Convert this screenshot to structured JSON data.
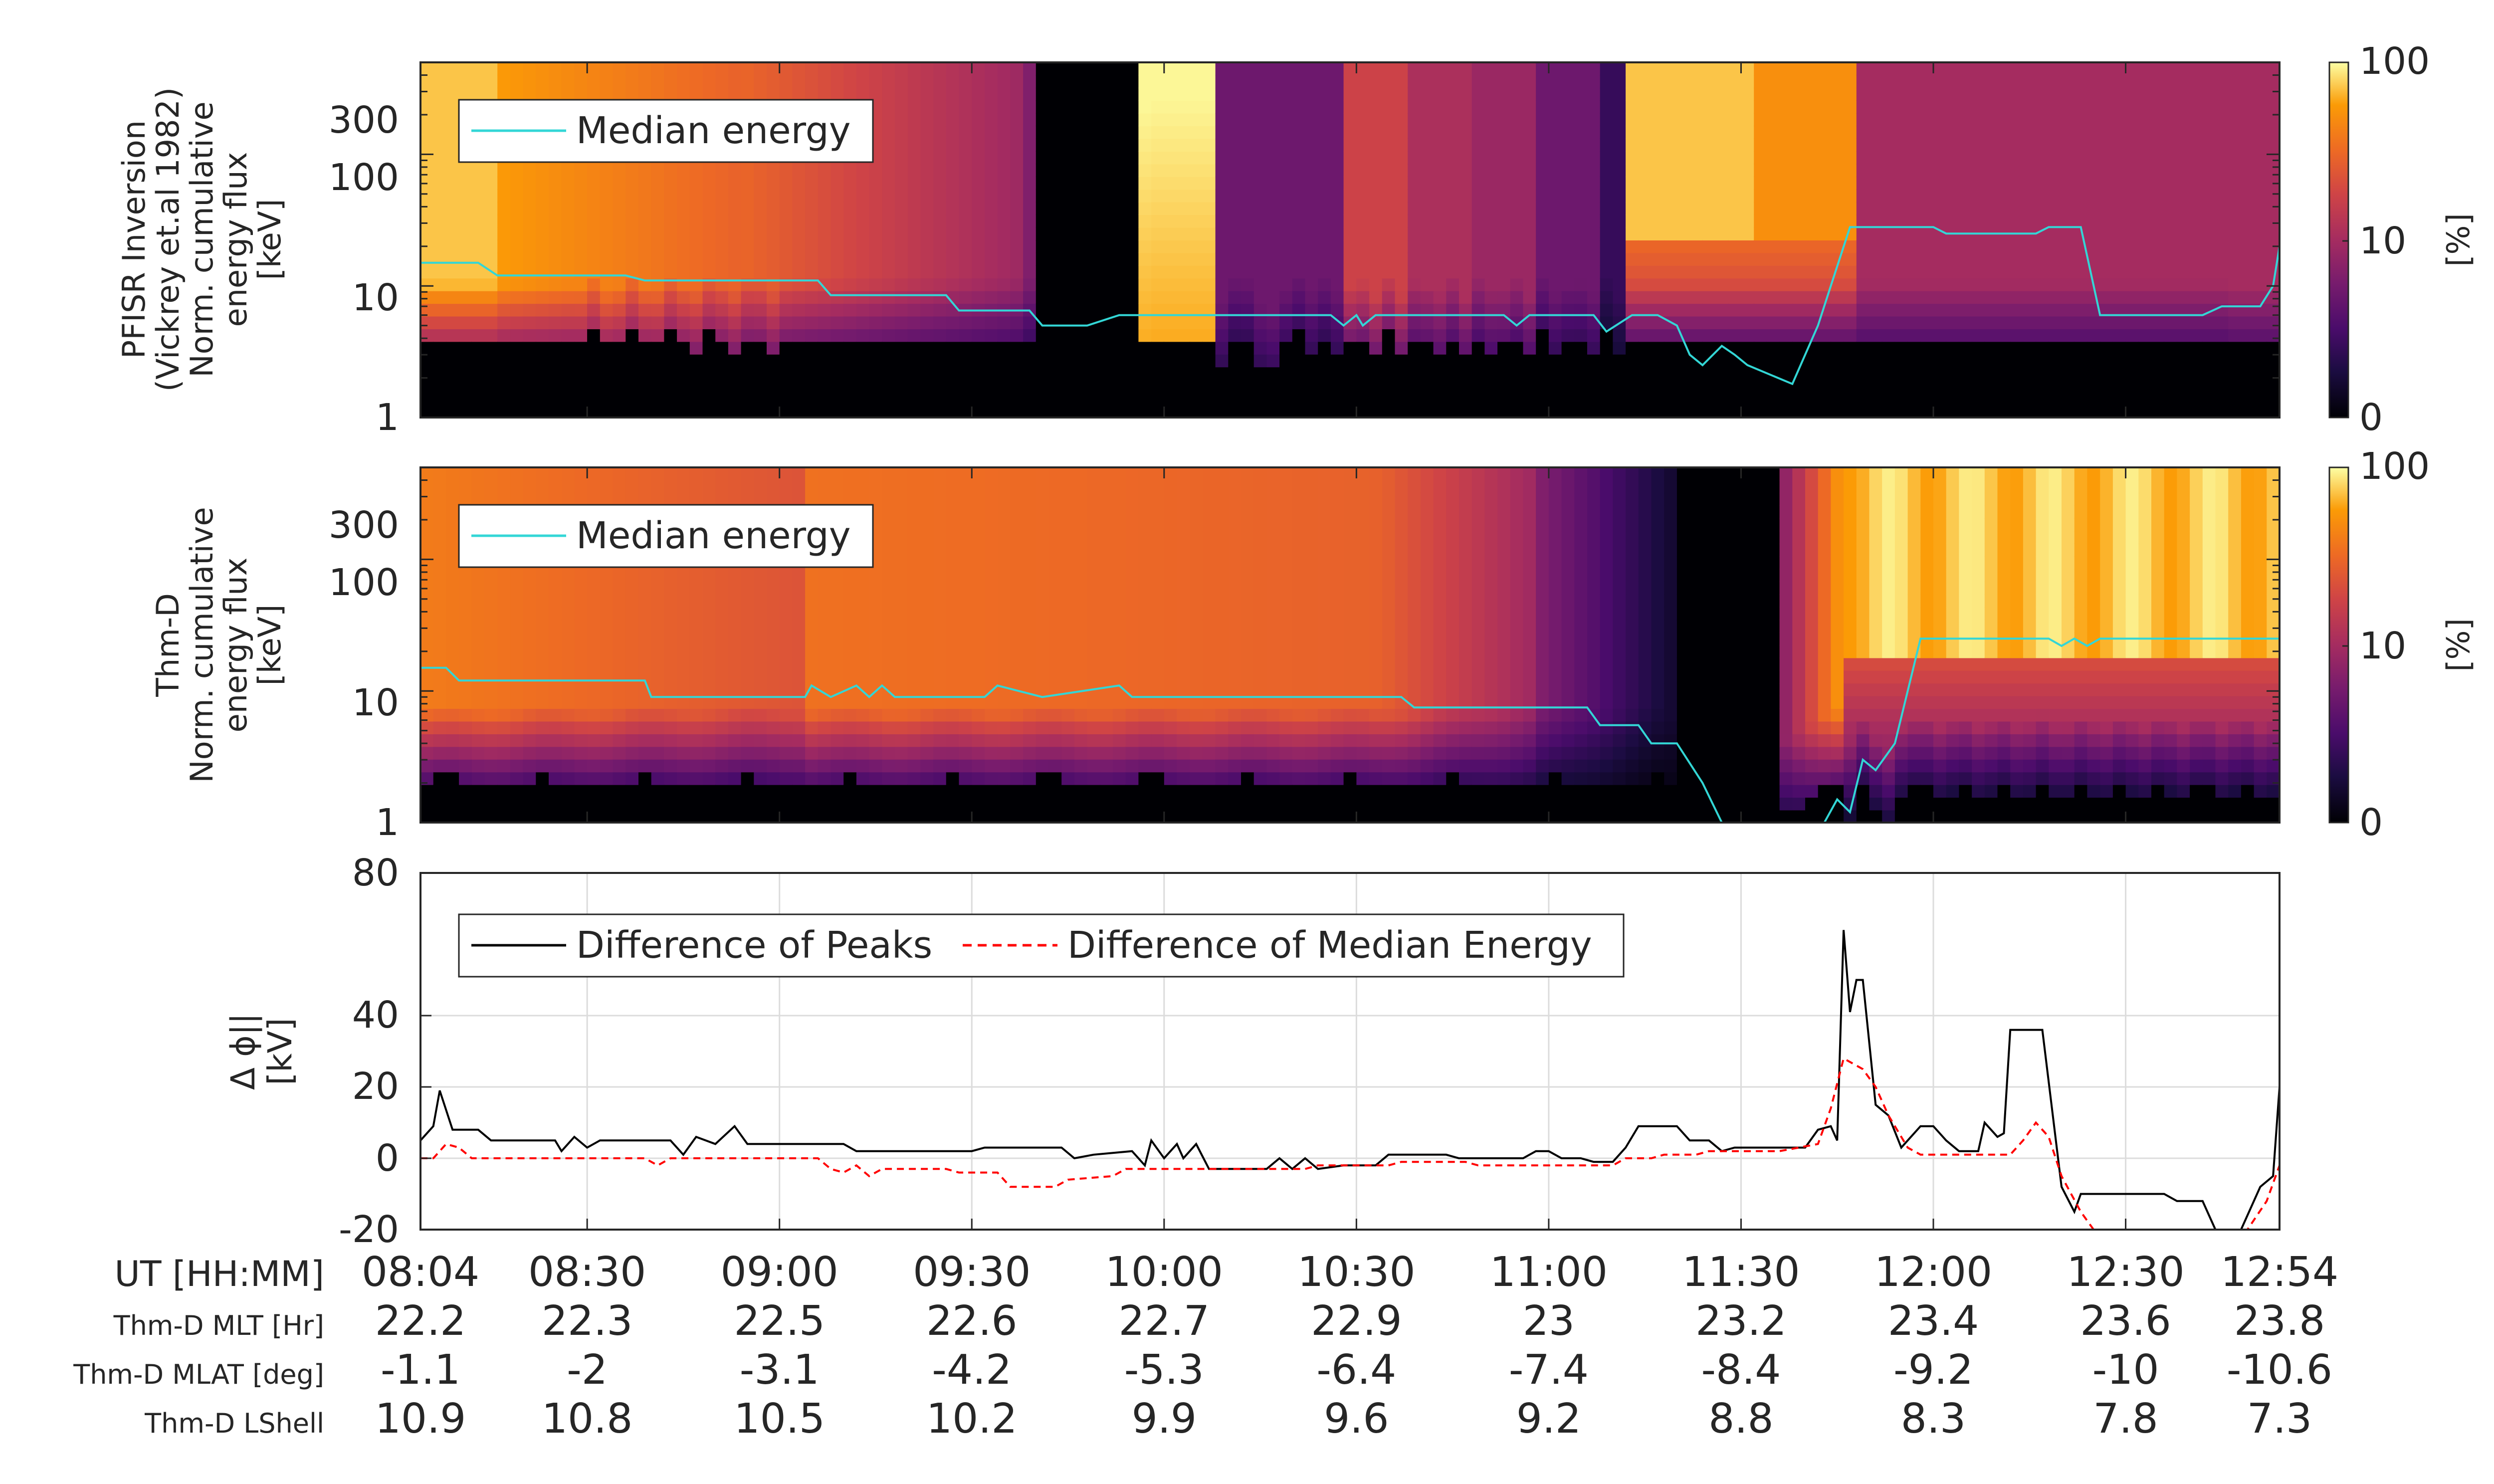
{
  "chart_data": [
    {
      "type": "heatmap",
      "panel": "top",
      "ylabel": [
        "PFISR Inversion",
        "(Vickrey et.al 1982)",
        "Norm. cumulative",
        "energy flux",
        "[keV]"
      ],
      "yscale": "log",
      "ylim": [
        1,
        500
      ],
      "yticks": [
        1,
        10,
        100,
        300
      ],
      "xlim": [
        "08:04",
        "12:54"
      ],
      "colorbar": {
        "label": "[%]",
        "ticks": [
          0,
          10,
          100
        ],
        "colormap": "inferno"
      },
      "legend": [
        "Median energy"
      ],
      "legend_placement": "top-left",
      "median_energy_color": "#33d6d6",
      "median_energy_kev": [
        [
          "08:04",
          15
        ],
        [
          "08:13",
          15
        ],
        [
          "08:16",
          12
        ],
        [
          "08:36",
          12
        ],
        [
          "08:39",
          11
        ],
        [
          "09:06",
          11
        ],
        [
          "09:08",
          8.5
        ],
        [
          "09:26",
          8.5
        ],
        [
          "09:28",
          6.5
        ],
        [
          "09:39",
          6.5
        ],
        [
          "09:41",
          5
        ],
        [
          "09:48",
          5
        ],
        [
          "09:53",
          6
        ],
        [
          "10:26",
          6
        ],
        [
          "10:28",
          5
        ],
        [
          "10:30",
          6
        ],
        [
          "10:31",
          5
        ],
        [
          "10:33",
          6
        ],
        [
          "10:53",
          6
        ],
        [
          "10:55",
          5
        ],
        [
          "10:57",
          6
        ],
        [
          "11:07",
          6
        ],
        [
          "11:09",
          4.5
        ],
        [
          "11:13",
          6
        ],
        [
          "11:17",
          6
        ],
        [
          "11:20",
          5
        ],
        [
          "11:22",
          3
        ],
        [
          "11:24",
          2.5
        ],
        [
          "11:27",
          3.5
        ],
        [
          "11:29",
          3
        ],
        [
          "11:31",
          2.5
        ],
        [
          "11:38",
          1.8
        ],
        [
          "11:42",
          5
        ],
        [
          "11:44",
          10
        ],
        [
          "11:47",
          28
        ],
        [
          "12:00",
          28
        ],
        [
          "12:02",
          25
        ],
        [
          "12:16",
          25
        ],
        [
          "12:18",
          28
        ],
        [
          "12:23",
          28
        ],
        [
          "12:26",
          6
        ],
        [
          "12:42",
          6
        ],
        [
          "12:45",
          7
        ],
        [
          "12:51",
          7
        ],
        [
          "12:53",
          10
        ],
        [
          "12:54",
          20
        ]
      ]
    },
    {
      "type": "heatmap",
      "panel": "middle",
      "ylabel": [
        "Thm-D",
        "Norm. cumulative",
        "energy flux",
        "[keV]"
      ],
      "yscale": "log",
      "ylim": [
        1,
        500
      ],
      "yticks": [
        1,
        10,
        100,
        300
      ],
      "xlim": [
        "08:04",
        "12:54"
      ],
      "colorbar": {
        "label": "[%]",
        "ticks": [
          0,
          10,
          100
        ],
        "colormap": "inferno"
      },
      "legend": [
        "Median energy"
      ],
      "legend_placement": "top-left",
      "median_energy_color": "#33d6d6",
      "median_energy_kev": [
        [
          "08:04",
          15
        ],
        [
          "08:08",
          15
        ],
        [
          "08:10",
          12
        ],
        [
          "08:39",
          12
        ],
        [
          "08:40",
          9
        ],
        [
          "09:04",
          9
        ],
        [
          "09:05",
          11
        ],
        [
          "09:08",
          9
        ],
        [
          "09:12",
          11
        ],
        [
          "09:14",
          9
        ],
        [
          "09:16",
          11
        ],
        [
          "09:18",
          9
        ],
        [
          "09:32",
          9
        ],
        [
          "09:34",
          11
        ],
        [
          "09:41",
          9
        ],
        [
          "09:53",
          11
        ],
        [
          "09:55",
          9
        ],
        [
          "10:37",
          9
        ],
        [
          "10:39",
          7.5
        ],
        [
          "11:06",
          7.5
        ],
        [
          "11:08",
          5.5
        ],
        [
          "11:14",
          5.5
        ],
        [
          "11:16",
          4
        ],
        [
          "11:20",
          4
        ],
        [
          "11:24",
          2
        ],
        [
          "11:27",
          1
        ],
        [
          "11:43",
          1
        ],
        [
          "11:45",
          1.5
        ],
        [
          "11:47",
          1.2
        ],
        [
          "11:49",
          3
        ],
        [
          "11:51",
          2.5
        ],
        [
          "11:54",
          4
        ],
        [
          "11:58",
          25
        ],
        [
          "12:18",
          25
        ],
        [
          "12:20",
          22
        ],
        [
          "12:22",
          25
        ],
        [
          "12:24",
          22
        ],
        [
          "12:26",
          25
        ],
        [
          "12:54",
          25
        ]
      ]
    },
    {
      "type": "line",
      "panel": "bottom",
      "ylabel": [
        "Δ ϕ||",
        "[kV]"
      ],
      "ylim": [
        -20,
        80
      ],
      "yticks": [
        -20,
        0,
        20,
        40,
        80
      ],
      "xlim": [
        "08:04",
        "12:54"
      ],
      "grid": true,
      "legend_placement": "top-left",
      "series": [
        {
          "name": "Difference of Peaks",
          "color": "#000000",
          "style": "solid",
          "points": [
            [
              "08:04",
              5
            ],
            [
              "08:06",
              9
            ],
            [
              "08:07",
              19
            ],
            [
              "08:09",
              8
            ],
            [
              "08:13",
              8
            ],
            [
              "08:15",
              5
            ],
            [
              "08:25",
              5
            ],
            [
              "08:26",
              2
            ],
            [
              "08:28",
              6
            ],
            [
              "08:30",
              3
            ],
            [
              "08:32",
              5
            ],
            [
              "08:43",
              5
            ],
            [
              "08:45",
              1
            ],
            [
              "08:47",
              6
            ],
            [
              "08:50",
              4
            ],
            [
              "08:53",
              9
            ],
            [
              "08:55",
              4
            ],
            [
              "09:10",
              4
            ],
            [
              "09:12",
              2
            ],
            [
              "09:30",
              2
            ],
            [
              "09:32",
              3
            ],
            [
              "09:44",
              3
            ],
            [
              "09:46",
              0
            ],
            [
              "09:49",
              1
            ],
            [
              "09:55",
              2
            ],
            [
              "09:57",
              -2
            ],
            [
              "09:58",
              5
            ],
            [
              "10:00",
              0
            ],
            [
              "10:02",
              4
            ],
            [
              "10:03",
              0
            ],
            [
              "10:05",
              4
            ],
            [
              "10:07",
              -3
            ],
            [
              "10:16",
              -3
            ],
            [
              "10:18",
              0
            ],
            [
              "10:20",
              -3
            ],
            [
              "10:22",
              0
            ],
            [
              "10:24",
              -3
            ],
            [
              "10:28",
              -2
            ],
            [
              "10:33",
              -2
            ],
            [
              "10:35",
              1
            ],
            [
              "10:44",
              1
            ],
            [
              "10:46",
              0
            ],
            [
              "10:56",
              0
            ],
            [
              "10:58",
              2
            ],
            [
              "11:00",
              2
            ],
            [
              "11:02",
              0
            ],
            [
              "11:05",
              0
            ],
            [
              "11:07",
              -1
            ],
            [
              "11:10",
              -1
            ],
            [
              "11:12",
              3
            ],
            [
              "11:14",
              9
            ],
            [
              "11:20",
              9
            ],
            [
              "11:22",
              5
            ],
            [
              "11:25",
              5
            ],
            [
              "11:27",
              2
            ],
            [
              "11:29",
              3
            ],
            [
              "11:40",
              3
            ],
            [
              "11:42",
              8
            ],
            [
              "11:44",
              9
            ],
            [
              "11:45",
              5
            ],
            [
              "11:46",
              64
            ],
            [
              "11:47",
              41
            ],
            [
              "11:48",
              50
            ],
            [
              "11:49",
              50
            ],
            [
              "11:51",
              15
            ],
            [
              "11:53",
              12
            ],
            [
              "11:55",
              3
            ],
            [
              "11:58",
              9
            ],
            [
              "12:00",
              9
            ],
            [
              "12:02",
              5
            ],
            [
              "12:04",
              2
            ],
            [
              "12:07",
              2
            ],
            [
              "12:08",
              10
            ],
            [
              "12:10",
              6
            ],
            [
              "12:11",
              7
            ],
            [
              "12:12",
              36
            ],
            [
              "12:17",
              36
            ],
            [
              "12:20",
              -8
            ],
            [
              "12:22",
              -15
            ],
            [
              "12:23",
              -10
            ],
            [
              "12:36",
              -10
            ],
            [
              "12:38",
              -12
            ],
            [
              "12:42",
              -12
            ],
            [
              "12:44",
              -20
            ],
            [
              "12:48",
              -20
            ],
            [
              "12:51",
              -8
            ],
            [
              "12:53",
              -5
            ],
            [
              "12:54",
              20
            ]
          ]
        },
        {
          "name": "Difference of Median Energy",
          "color": "#ff0000",
          "style": "dashed",
          "points": [
            [
              "08:04",
              0
            ],
            [
              "08:06",
              0
            ],
            [
              "08:08",
              4
            ],
            [
              "08:10",
              3
            ],
            [
              "08:12",
              0
            ],
            [
              "08:39",
              0
            ],
            [
              "08:41",
              -2
            ],
            [
              "08:43",
              0
            ],
            [
              "09:06",
              0
            ],
            [
              "09:08",
              -3
            ],
            [
              "09:10",
              -4
            ],
            [
              "09:12",
              -2
            ],
            [
              "09:14",
              -5
            ],
            [
              "09:16",
              -3
            ],
            [
              "09:18",
              -3
            ],
            [
              "09:26",
              -3
            ],
            [
              "09:28",
              -4
            ],
            [
              "09:34",
              -4
            ],
            [
              "09:36",
              -8
            ],
            [
              "09:43",
              -8
            ],
            [
              "09:45",
              -6
            ],
            [
              "09:52",
              -5
            ],
            [
              "09:54",
              -3
            ],
            [
              "10:10",
              -3
            ],
            [
              "10:12",
              -3
            ],
            [
              "10:22",
              -3
            ],
            [
              "10:24",
              -2
            ],
            [
              "10:35",
              -2
            ],
            [
              "10:37",
              -1
            ],
            [
              "10:47",
              -1
            ],
            [
              "10:49",
              -2
            ],
            [
              "11:10",
              -2
            ],
            [
              "11:12",
              0
            ],
            [
              "11:16",
              0
            ],
            [
              "11:18",
              1
            ],
            [
              "11:23",
              1
            ],
            [
              "11:25",
              2
            ],
            [
              "11:36",
              2
            ],
            [
              "11:39",
              3
            ],
            [
              "11:42",
              4
            ],
            [
              "11:44",
              14
            ],
            [
              "11:46",
              28
            ],
            [
              "11:49",
              25
            ],
            [
              "11:51",
              20
            ],
            [
              "11:53",
              12
            ],
            [
              "11:56",
              3
            ],
            [
              "11:58",
              1
            ],
            [
              "12:12",
              1
            ],
            [
              "12:14",
              5
            ],
            [
              "12:16",
              10
            ],
            [
              "12:18",
              6
            ],
            [
              "12:20",
              -5
            ],
            [
              "12:23",
              -15
            ],
            [
              "12:25",
              -20
            ],
            [
              "12:45",
              -20
            ],
            [
              "12:49",
              -20
            ],
            [
              "12:52",
              -12
            ],
            [
              "12:54",
              -2
            ]
          ]
        }
      ]
    }
  ],
  "x_axis_table": {
    "rows": [
      {
        "label": "UT [HH:MM]",
        "values": [
          "08:04",
          "08:30",
          "09:00",
          "09:30",
          "10:00",
          "10:30",
          "11:00",
          "11:30",
          "12:00",
          "12:30",
          "12:54"
        ]
      },
      {
        "label": "Thm-D MLT [Hr]",
        "values": [
          "22.2",
          "22.3",
          "22.5",
          "22.6",
          "22.7",
          "22.9",
          "23",
          "23.2",
          "23.4",
          "23.6",
          "23.8"
        ]
      },
      {
        "label": "Thm-D MLAT [deg]",
        "values": [
          "-1.1",
          "-2",
          "-3.1",
          "-4.2",
          "-5.3",
          "-6.4",
          "-7.4",
          "-8.4",
          "-9.2",
          "-10",
          "-10.6"
        ]
      },
      {
        "label": "Thm-D LShell",
        "values": [
          "10.9",
          "10.8",
          "10.5",
          "10.2",
          "9.9",
          "9.6",
          "9.2",
          "8.8",
          "8.3",
          "7.8",
          "7.3"
        ]
      }
    ]
  },
  "colors": {
    "cyan_line": "#33d6d6",
    "black_line": "#000000",
    "red_dashed": "#ff0000",
    "axis": "#262626",
    "grid": "#dcdcdc"
  }
}
